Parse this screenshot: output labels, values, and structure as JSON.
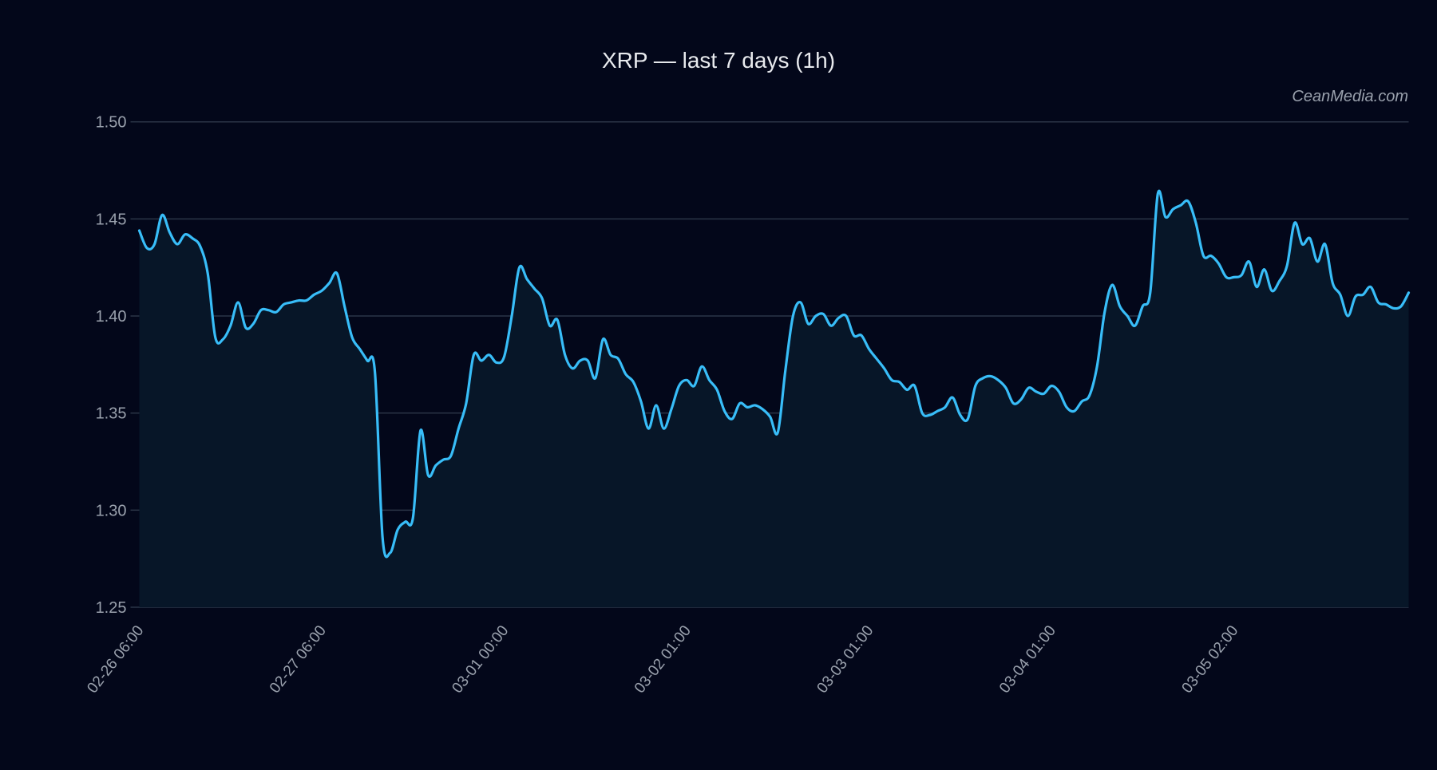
{
  "chart_data": {
    "type": "line",
    "title": "XRP — last 7 days (1h)",
    "watermark": "CeanMedia.com",
    "xlabel": "",
    "ylabel": "",
    "ylim": [
      1.25,
      1.5
    ],
    "yticks": [
      "1.25",
      "1.30",
      "1.35",
      "1.40",
      "1.45",
      "1.50"
    ],
    "xticks": [
      {
        "index": 0,
        "label": "02-26 06:00"
      },
      {
        "index": 24,
        "label": "02-27 06:00"
      },
      {
        "index": 48,
        "label": "03-01 00:00"
      },
      {
        "index": 72,
        "label": "03-02 01:00"
      },
      {
        "index": 96,
        "label": "03-03 01:00"
      },
      {
        "index": 120,
        "label": "03-04 01:00"
      },
      {
        "index": 144,
        "label": "03-05 02:00"
      }
    ],
    "grid": true,
    "colors": {
      "background": "#03071a",
      "line": "#38bdf8",
      "area": "#071628",
      "grid": "#2b3547",
      "text": "#9aa1ad",
      "title": "#e8eaee"
    },
    "values": [
      1.444,
      1.435,
      1.437,
      1.452,
      1.443,
      1.437,
      1.442,
      1.44,
      1.436,
      1.422,
      1.389,
      1.388,
      1.395,
      1.407,
      1.394,
      1.396,
      1.403,
      1.403,
      1.402,
      1.406,
      1.407,
      1.408,
      1.408,
      1.411,
      1.413,
      1.417,
      1.422,
      1.405,
      1.389,
      1.383,
      1.377,
      1.371,
      1.286,
      1.278,
      1.29,
      1.294,
      1.296,
      1.341,
      1.318,
      1.323,
      1.326,
      1.328,
      1.342,
      1.355,
      1.38,
      1.377,
      1.38,
      1.376,
      1.379,
      1.4,
      1.425,
      1.419,
      1.414,
      1.409,
      1.395,
      1.398,
      1.38,
      1.373,
      1.377,
      1.377,
      1.368,
      1.388,
      1.38,
      1.378,
      1.37,
      1.366,
      1.356,
      1.342,
      1.354,
      1.342,
      1.352,
      1.364,
      1.367,
      1.364,
      1.374,
      1.367,
      1.362,
      1.351,
      1.347,
      1.355,
      1.353,
      1.354,
      1.352,
      1.348,
      1.34,
      1.372,
      1.4,
      1.407,
      1.396,
      1.4,
      1.401,
      1.395,
      1.399,
      1.4,
      1.39,
      1.39,
      1.383,
      1.378,
      1.373,
      1.367,
      1.366,
      1.362,
      1.364,
      1.35,
      1.349,
      1.351,
      1.353,
      1.358,
      1.349,
      1.347,
      1.364,
      1.368,
      1.369,
      1.367,
      1.363,
      1.355,
      1.357,
      1.363,
      1.361,
      1.36,
      1.364,
      1.361,
      1.353,
      1.351,
      1.356,
      1.359,
      1.374,
      1.402,
      1.416,
      1.405,
      1.4,
      1.395,
      1.405,
      1.412,
      1.463,
      1.451,
      1.455,
      1.457,
      1.459,
      1.448,
      1.431,
      1.431,
      1.427,
      1.42,
      1.42,
      1.421,
      1.428,
      1.415,
      1.424,
      1.413,
      1.418,
      1.426,
      1.448,
      1.437,
      1.44,
      1.428,
      1.437,
      1.417,
      1.411,
      1.4,
      1.41,
      1.411,
      1.415,
      1.407,
      1.406,
      1.404,
      1.405,
      1.412
    ]
  }
}
